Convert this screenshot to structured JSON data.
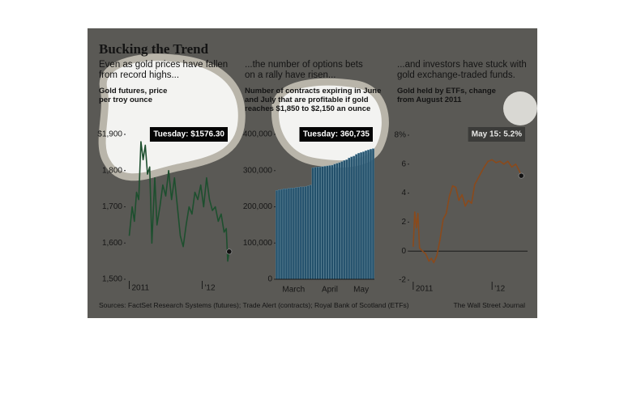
{
  "header": {
    "title": "Bucking the Trend"
  },
  "footer": {
    "source": "Sources: FactSet Research Systems (futures); Trade Alert (contracts); Royal Bank of Scotland (ETFs)",
    "credit": "The Wall Street Journal"
  },
  "chart_data": [
    {
      "type": "line",
      "subtitle": "Even as gold prices have fallen from record highs...",
      "label": "Gold futures, price per troy ounce",
      "annotation": "Tuesday: $1576.30",
      "color": "#1d4f2e",
      "x": [
        2011.0,
        2011.04,
        2011.07,
        2011.1,
        2011.13,
        2011.16,
        2011.19,
        2011.22,
        2011.25,
        2011.28,
        2011.31,
        2011.35,
        2011.38,
        2011.42,
        2011.46,
        2011.5,
        2011.54,
        2011.58,
        2011.62,
        2011.66,
        2011.7,
        2011.74,
        2011.78,
        2011.82,
        2011.86,
        2011.9,
        2011.94,
        2011.98,
        2012.02,
        2012.06,
        2012.1,
        2012.14,
        2012.18,
        2012.22,
        2012.26,
        2012.3,
        2012.33,
        2012.35,
        2012.37
      ],
      "values": [
        1620,
        1700,
        1660,
        1740,
        1720,
        1880,
        1830,
        1870,
        1790,
        1810,
        1600,
        1780,
        1650,
        1700,
        1760,
        1730,
        1800,
        1720,
        1780,
        1700,
        1620,
        1590,
        1650,
        1700,
        1680,
        1740,
        1720,
        1760,
        1700,
        1780,
        1720,
        1690,
        1700,
        1660,
        1680,
        1630,
        1640,
        1550,
        1576.3
      ],
      "xlim": [
        2010.95,
        2012.45
      ],
      "xticks": [
        2011,
        {
          "value": 2012,
          "label": "'12"
        }
      ],
      "ylim": [
        1500,
        1900
      ],
      "yticks": [
        {
          "value": 1500,
          "label": "1,500"
        },
        {
          "value": 1600,
          "label": "1,600"
        },
        {
          "value": 1700,
          "label": "1,700"
        },
        {
          "value": 1800,
          "label": "1,800"
        },
        {
          "value": 1900,
          "label": "$1,900"
        }
      ],
      "end_marker": true
    },
    {
      "type": "bar",
      "subtitle": "...the number of options bets on a rally have risen...",
      "label": "Number of contracts expiring in June and July that are profitable if gold reaches $1,850 to $2,150 an ounce",
      "annotation": "Tuesday: 360,735",
      "color": "#23506b",
      "categories": [
        null,
        null,
        null,
        null,
        null,
        null,
        null,
        "March",
        null,
        null,
        null,
        null,
        null,
        null,
        null,
        null,
        null,
        null,
        null,
        null,
        null,
        null,
        "April",
        null,
        null,
        null,
        null,
        null,
        null,
        null,
        null,
        null,
        null,
        null,
        null,
        "May",
        null,
        null,
        null,
        null,
        null
      ],
      "values": [
        245000,
        247000,
        248000,
        250000,
        250000,
        251000,
        252000,
        252000,
        253000,
        254000,
        255000,
        255000,
        256000,
        258000,
        260000,
        308000,
        309000,
        310000,
        310000,
        311000,
        312000,
        313000,
        314000,
        315000,
        318000,
        320000,
        322000,
        325000,
        328000,
        330000,
        335000,
        338000,
        340000,
        345000,
        348000,
        350000,
        352000,
        355000,
        357000,
        359000,
        360735
      ],
      "ylim": [
        0,
        400000
      ],
      "yticks": [
        0,
        {
          "value": 100000,
          "label": "100,000"
        },
        {
          "value": 200000,
          "label": "200,000"
        },
        {
          "value": 300000,
          "label": "300,000"
        },
        {
          "value": 400000,
          "label": "400,000"
        }
      ]
    },
    {
      "type": "line",
      "subtitle": "...and investors have stuck with gold exchange-traded funds.",
      "label": "Gold held by ETFs, change from August 2011",
      "annotation": "May 15: 5.2%",
      "color": "#8a4a1c",
      "x": [
        2011.0,
        2011.02,
        2011.04,
        2011.06,
        2011.08,
        2011.12,
        2011.16,
        2011.2,
        2011.23,
        2011.26,
        2011.3,
        2011.34,
        2011.38,
        2011.42,
        2011.46,
        2011.5,
        2011.54,
        2011.58,
        2011.62,
        2011.66,
        2011.7,
        2011.74,
        2011.78,
        2011.82,
        2011.86,
        2011.9,
        2011.95,
        2012.0,
        2012.05,
        2012.1,
        2012.15,
        2012.2,
        2012.25,
        2012.3,
        2012.34,
        2012.37
      ],
      "values": [
        0.3,
        2.7,
        1.6,
        2.6,
        0.2,
        0,
        -0.2,
        -0.7,
        -0.5,
        -0.8,
        -0.3,
        0.8,
        2.2,
        2.6,
        3.8,
        4.5,
        4.4,
        3.5,
        3.9,
        3.1,
        3.5,
        3.3,
        4.6,
        5.0,
        5.4,
        5.8,
        6.2,
        6.3,
        6.1,
        6.2,
        6.0,
        6.2,
        5.8,
        6.0,
        5.6,
        5.2
      ],
      "xlim": [
        2010.95,
        2012.45
      ],
      "xticks": [
        2011,
        {
          "value": 2012,
          "label": "'12"
        }
      ],
      "ylim": [
        -2,
        8
      ],
      "yticks": [
        -2,
        0,
        2,
        4,
        6,
        {
          "value": 8,
          "label": "8%"
        }
      ],
      "end_marker": true
    }
  ]
}
